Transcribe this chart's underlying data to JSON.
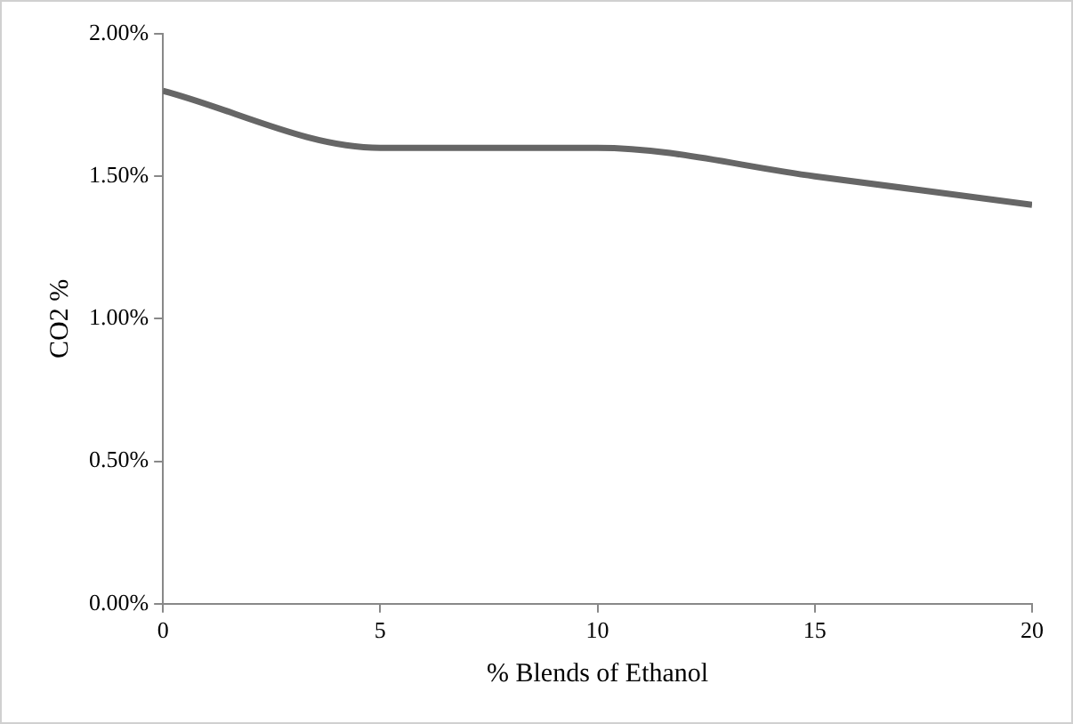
{
  "chart_data": {
    "type": "line",
    "xlabel": "% Blends of Ethanol",
    "ylabel": "CO2 %",
    "x": [
      0,
      5,
      10,
      15,
      20
    ],
    "series": [
      {
        "color": "#666666",
        "values": [
          1.8,
          1.6,
          1.6,
          1.5,
          1.4
        ]
      }
    ],
    "xlim": [
      0,
      20
    ],
    "xticks": [
      0,
      5,
      10,
      15,
      20
    ],
    "ylim": [
      0,
      2
    ],
    "yticks": [
      {
        "value": 0,
        "label": "0.00%"
      },
      {
        "value": 0.5,
        "label": "0.50%"
      },
      {
        "value": 1,
        "label": "1.00%"
      },
      {
        "value": 1.5,
        "label": "1.50%"
      },
      {
        "value": 2,
        "label": "2.00%"
      }
    ],
    "grid": false,
    "legend": false,
    "marker": "none",
    "line_style": "solid"
  }
}
